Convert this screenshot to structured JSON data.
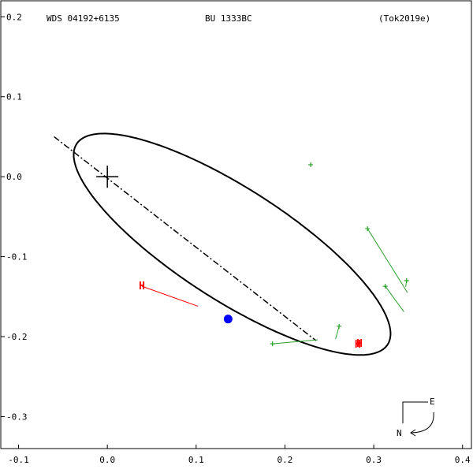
{
  "chart_data": {
    "type": "scatter",
    "header": {
      "left": "WDS 04192+6135",
      "center": "BU 1333BC",
      "right": "(Tok2019e)"
    },
    "xlim": [
      -0.12,
      0.41
    ],
    "ylim": [
      -0.34,
      0.22
    ],
    "x_ticks": [
      {
        "value": -0.1,
        "label": "-0.1"
      },
      {
        "value": 0.0,
        "label": "0.0"
      },
      {
        "value": 0.1,
        "label": "0.1"
      },
      {
        "value": 0.2,
        "label": "0.2"
      },
      {
        "value": 0.3,
        "label": "0.3"
      },
      {
        "value": 0.4,
        "label": "0.4"
      }
    ],
    "y_ticks": [
      {
        "value": 0.2,
        "label": "0.2"
      },
      {
        "value": 0.1,
        "label": "0.1"
      },
      {
        "value": 0.0,
        "label": "0.0"
      },
      {
        "value": -0.1,
        "label": "-0.1"
      },
      {
        "value": -0.2,
        "label": "-0.2"
      },
      {
        "value": -0.3,
        "label": "-0.3"
      }
    ],
    "orbit_ellipse": {
      "center": [
        0.1405,
        -0.0845
      ],
      "semi_axes": [
        0.2155,
        0.0675
      ],
      "angle_deg": -36.2
    },
    "line_of_nodes": [
      [
        -0.06,
        0.05
      ],
      [
        0.235,
        -0.205
      ]
    ],
    "primary": [
      0.0,
      0.0
    ],
    "periastron_dot": [
      0.136,
      -0.178
    ],
    "observations": [
      {
        "x": 0.229,
        "y": 0.015,
        "ex": 0.229,
        "ey": 0.013
      },
      {
        "x": 0.293,
        "y": -0.065,
        "ex": 0.338,
        "ey": -0.145
      },
      {
        "x": 0.313,
        "y": -0.137,
        "ex": 0.334,
        "ey": -0.169
      },
      {
        "x": 0.337,
        "y": -0.13,
        "ex": 0.336,
        "ey": -0.138
      },
      {
        "x": 0.261,
        "y": -0.187,
        "ex": 0.257,
        "ey": -0.203
      },
      {
        "x": 0.186,
        "y": -0.209,
        "ex": 0.237,
        "ey": -0.204
      }
    ],
    "h_points": [
      {
        "x": 0.039,
        "y": -0.137,
        "ex": 0.102,
        "ey": -0.162
      },
      {
        "x": 0.282,
        "y": -0.21,
        "ex": 0.283,
        "ey": -0.21
      },
      {
        "x": 0.284,
        "y": -0.209,
        "ex": 0.285,
        "ey": -0.209
      }
    ],
    "h_label": "H",
    "compass": {
      "east": "E",
      "north": "N"
    },
    "colors": {
      "orbit": "#000000",
      "observation": "#2aa02a",
      "h_point": "#ff0000",
      "periastron": "#0000ff"
    }
  }
}
